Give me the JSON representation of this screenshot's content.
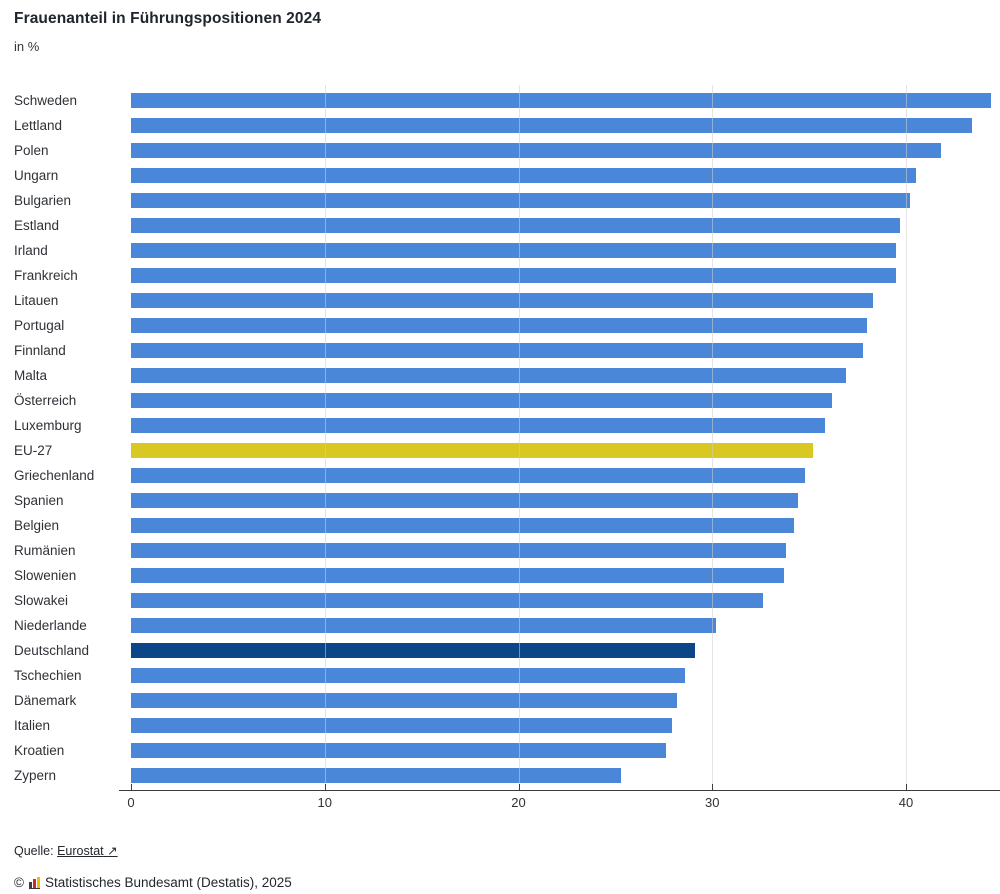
{
  "header": {
    "title": "Frauenanteil in Führungspositionen 2024",
    "subtitle": "in %"
  },
  "chart_data": {
    "type": "bar",
    "orientation": "horizontal",
    "title": "Frauenanteil in Führungspositionen 2024",
    "xlabel": "in %",
    "ylabel": "",
    "categories": [
      "Schweden",
      "Lettland",
      "Polen",
      "Ungarn",
      "Bulgarien",
      "Estland",
      "Irland",
      "Frankreich",
      "Litauen",
      "Portugal",
      "Finnland",
      "Malta",
      "Österreich",
      "Luxemburg",
      "EU-27",
      "Griechenland",
      "Spanien",
      "Belgien",
      "Rumänien",
      "Slowenien",
      "Slowakei",
      "Niederlande",
      "Deutschland",
      "Tschechien",
      "Dänemark",
      "Italien",
      "Kroatien",
      "Zypern"
    ],
    "values": [
      44.4,
      43.4,
      41.8,
      40.5,
      40.2,
      39.7,
      39.5,
      39.5,
      38.3,
      38.0,
      37.8,
      36.9,
      36.2,
      35.8,
      35.2,
      34.8,
      34.4,
      34.2,
      33.8,
      33.7,
      32.6,
      30.2,
      29.1,
      28.6,
      28.2,
      27.9,
      27.6,
      25.3
    ],
    "x_ticks": [
      0,
      10,
      20,
      30,
      40
    ],
    "xlim": [
      0,
      44.85
    ],
    "grid": "vertical-light",
    "legend": "none",
    "highlights": {
      "EU-27": "#d9c821",
      "Deutschland": "#0c4688"
    }
  },
  "colors": {
    "bar_default": "#4a87d9",
    "bar_eu27": "#d9c821",
    "bar_germany": "#0c4688",
    "axis": "#3c3c3c",
    "gridline": "#cdcdcd"
  },
  "footer": {
    "source_label": "Quelle:",
    "source_link_text": "Eurostat",
    "external_link_arrow": "↗",
    "copyright_symbol": "©",
    "copyright_text": "Statistisches Bundesamt (Destatis), 2025"
  }
}
